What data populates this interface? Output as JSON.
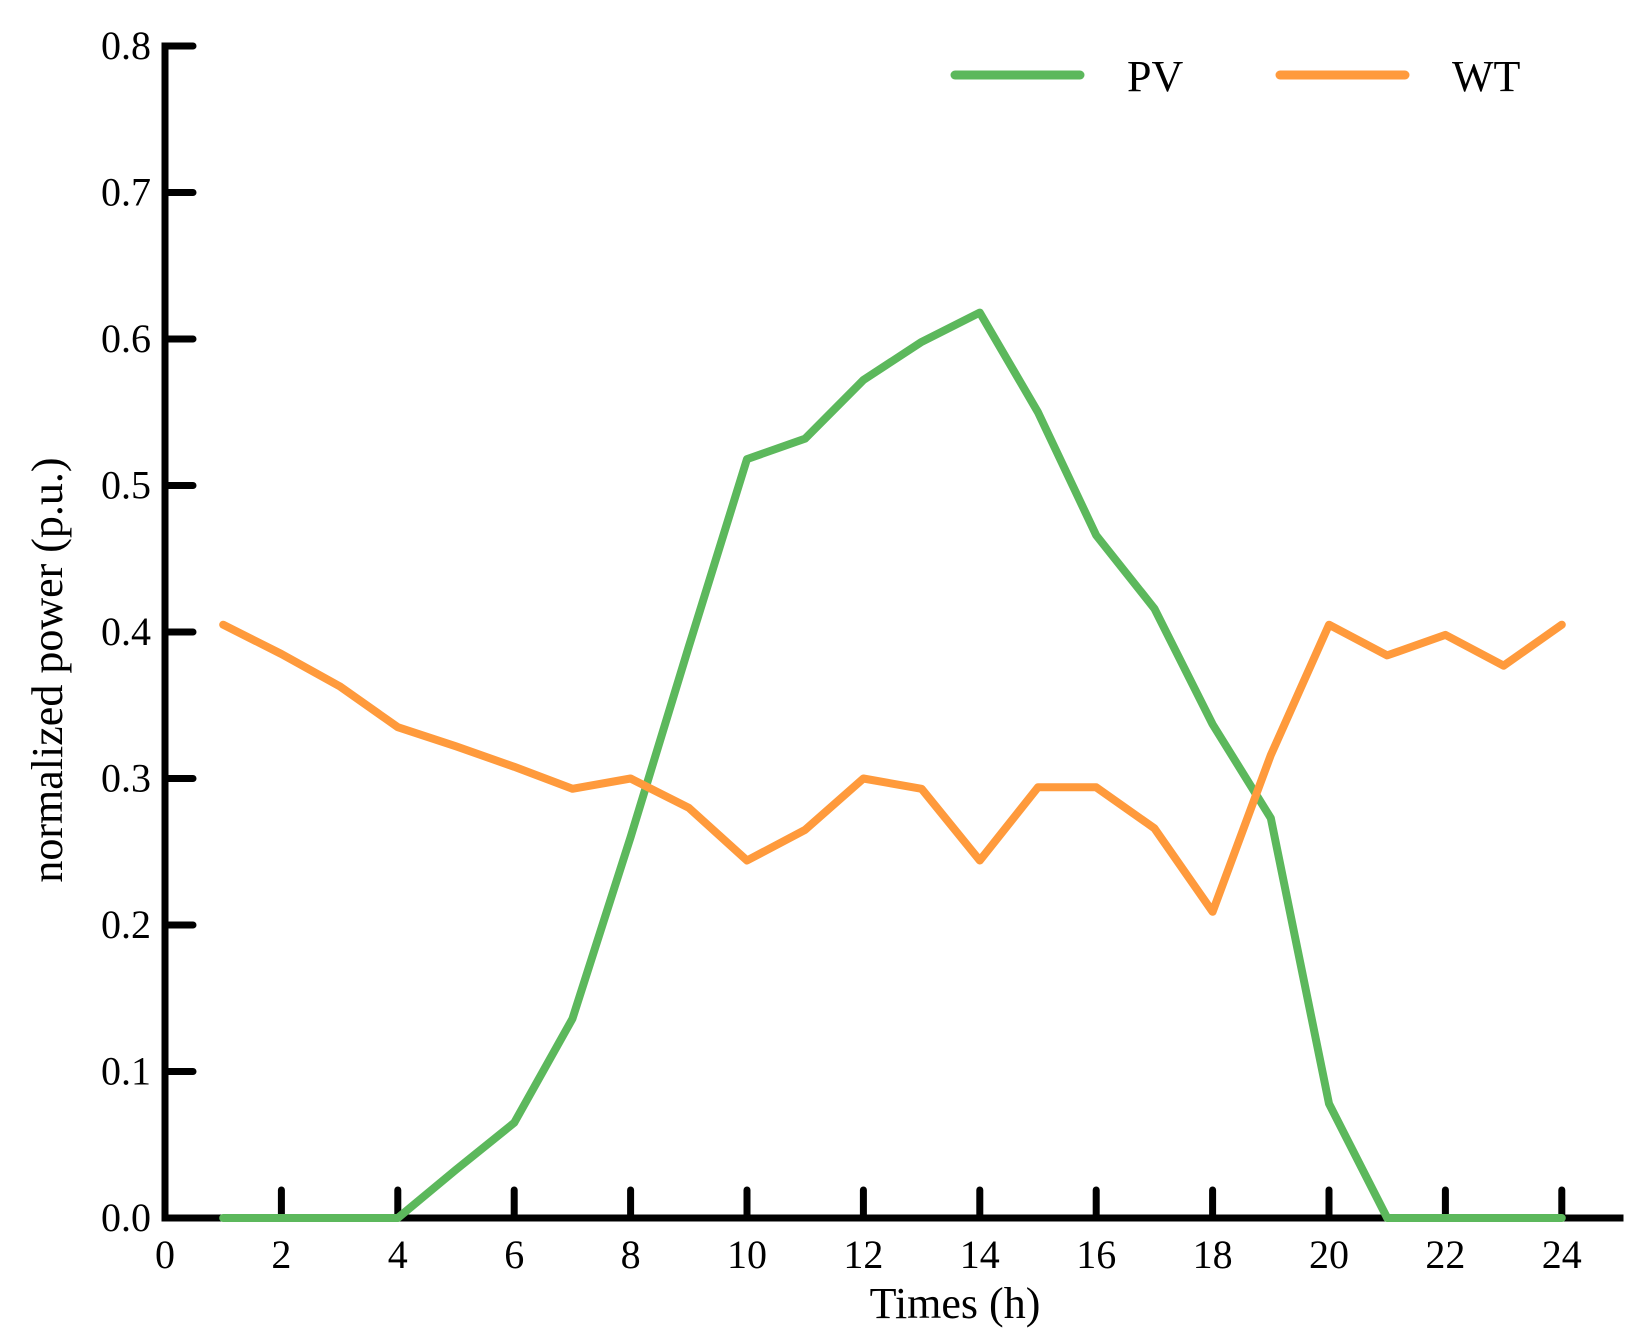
{
  "chart_data": {
    "type": "line",
    "title": "",
    "xlabel": "Times (h)",
    "ylabel": "normalized power (p.u.)",
    "xlim": [
      0,
      25
    ],
    "ylim": [
      0.0,
      0.8
    ],
    "x_ticks": [
      0,
      2,
      4,
      6,
      8,
      10,
      12,
      14,
      16,
      18,
      20,
      22,
      24
    ],
    "x_tick_labels": [
      "0",
      "2",
      "4",
      "6",
      "8",
      "10",
      "12",
      "14",
      "16",
      "18",
      "20",
      "22",
      "24"
    ],
    "y_ticks": [
      0.0,
      0.1,
      0.2,
      0.3,
      0.4,
      0.5,
      0.6,
      0.7,
      0.8
    ],
    "y_tick_labels": [
      "0.0",
      "0.1",
      "0.2",
      "0.3",
      "0.4",
      "0.5",
      "0.6",
      "0.7",
      "0.8"
    ],
    "grid": false,
    "legend_position": "top-right",
    "x": [
      1,
      2,
      3,
      4,
      5,
      6,
      7,
      8,
      9,
      10,
      11,
      12,
      13,
      14,
      15,
      16,
      17,
      18,
      19,
      20,
      21,
      22,
      23,
      24
    ],
    "series": [
      {
        "name": "PV",
        "color": "#5cb85c",
        "values": [
          0.0,
          0.0,
          0.0,
          0.0,
          0.033,
          0.065,
          0.136,
          0.26,
          0.39,
          0.518,
          0.532,
          0.572,
          0.598,
          0.618,
          0.55,
          0.466,
          0.416,
          0.337,
          0.273,
          0.078,
          0.0,
          0.0,
          0.0,
          0.0
        ]
      },
      {
        "name": "WT",
        "color": "#ff9a3c",
        "values": [
          0.405,
          0.385,
          0.363,
          0.335,
          0.322,
          0.308,
          0.293,
          0.3,
          0.28,
          0.244,
          0.265,
          0.3,
          0.293,
          0.244,
          0.294,
          0.294,
          0.266,
          0.209,
          0.316,
          0.405,
          0.384,
          0.398,
          0.377,
          0.405
        ]
      }
    ]
  }
}
